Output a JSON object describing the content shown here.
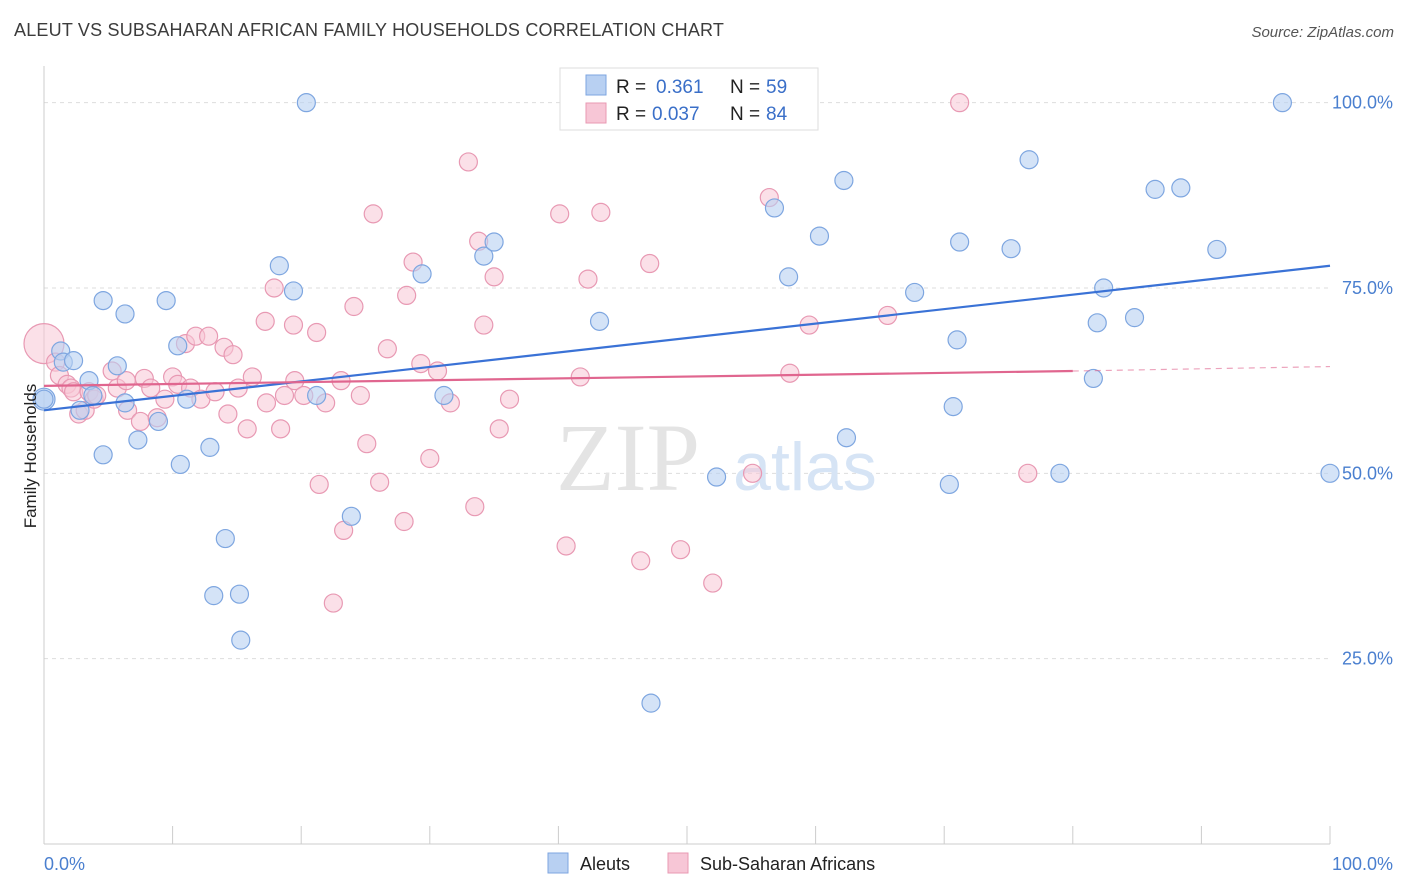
{
  "header": {
    "title": "ALEUT VS SUBSAHARAN AFRICAN FAMILY HOUSEHOLDS CORRELATION CHART",
    "source": "Source: ZipAtlas.com"
  },
  "watermark": {
    "zip": "ZIP",
    "atlas": "atlas"
  },
  "legend": {
    "rows": [
      {
        "r_label": "R =",
        "r_value": "0.361",
        "n_label": "N =",
        "n_value": "59"
      },
      {
        "r_label": "R =",
        "r_value": "0.037",
        "n_label": "N =",
        "n_value": "84"
      }
    ]
  },
  "bottom_legend": [
    "Aleuts",
    "Sub-Saharan Africans"
  ],
  "chart_data": {
    "type": "scatter",
    "title": "ALEUT VS SUBSAHARAN AFRICAN FAMILY HOUSEHOLDS CORRELATION CHART",
    "xlabel": "",
    "ylabel": "Family Households",
    "xlim": [
      0,
      100
    ],
    "ylim": [
      0,
      104
    ],
    "x_tick_labels": [
      "0.0%",
      "100.0%"
    ],
    "y_ticks": [
      25,
      50,
      75,
      100
    ],
    "y_tick_labels": [
      "25.0%",
      "50.0%",
      "75.0%",
      "100.0%"
    ],
    "grid": true,
    "legend_position": "top-center",
    "colors": {
      "aleuts_fill": "#b8d0f2",
      "aleuts_stroke": "#7ea6e0",
      "aleuts_line": "#3a72d6",
      "africans_fill": "#f7c6d6",
      "africans_stroke": "#e899b3",
      "africans_line": "#e0668f",
      "axis_text": "#4a7fcf",
      "grid": "#dddddd"
    },
    "series": [
      {
        "name": "Aleuts",
        "r": 0.361,
        "n": 59,
        "trend": {
          "x": [
            0,
            100
          ],
          "y": [
            58.5,
            78.0
          ]
        },
        "points": [
          [
            0.0,
            60.0
          ],
          [
            1.3,
            66.5
          ],
          [
            1.5,
            65.0
          ],
          [
            2.3,
            65.2
          ],
          [
            2.8,
            58.5
          ],
          [
            3.5,
            62.5
          ],
          [
            3.8,
            60.5
          ],
          [
            4.6,
            52.5
          ],
          [
            4.6,
            73.3
          ],
          [
            5.7,
            64.5
          ],
          [
            6.3,
            71.5
          ],
          [
            6.3,
            59.5
          ],
          [
            7.3,
            54.5
          ],
          [
            8.9,
            57.0
          ],
          [
            9.5,
            73.3
          ],
          [
            10.4,
            67.2
          ],
          [
            10.6,
            51.2
          ],
          [
            11.1,
            60.0
          ],
          [
            12.9,
            53.5
          ],
          [
            13.2,
            33.5
          ],
          [
            14.1,
            41.2
          ],
          [
            15.2,
            33.7
          ],
          [
            15.3,
            27.5
          ],
          [
            18.3,
            78.0
          ],
          [
            19.4,
            74.6
          ],
          [
            20.4,
            100.0
          ],
          [
            21.2,
            60.5
          ],
          [
            23.9,
            44.2
          ],
          [
            29.4,
            76.9
          ],
          [
            31.1,
            60.5
          ],
          [
            34.2,
            79.3
          ],
          [
            35.0,
            81.2
          ],
          [
            43.2,
            70.5
          ],
          [
            47.2,
            19.0
          ],
          [
            52.3,
            49.5
          ],
          [
            55.9,
            100.0
          ],
          [
            56.8,
            85.8
          ],
          [
            57.9,
            76.5
          ],
          [
            60.3,
            82.0
          ],
          [
            62.2,
            89.5
          ],
          [
            62.4,
            54.8
          ],
          [
            67.7,
            74.4
          ],
          [
            70.4,
            48.5
          ],
          [
            70.7,
            59.0
          ],
          [
            71.0,
            68.0
          ],
          [
            71.2,
            81.2
          ],
          [
            75.2,
            80.3
          ],
          [
            76.6,
            92.3
          ],
          [
            79.0,
            50.0
          ],
          [
            81.6,
            62.8
          ],
          [
            81.9,
            70.3
          ],
          [
            82.4,
            75.0
          ],
          [
            84.8,
            71.0
          ],
          [
            86.4,
            88.3
          ],
          [
            88.4,
            88.5
          ],
          [
            91.2,
            80.2
          ],
          [
            96.3,
            100.0
          ],
          [
            100.0,
            50.0
          ],
          [
            0.0,
            60.0
          ]
        ]
      },
      {
        "name": "Sub-Saharan Africans",
        "r": 0.037,
        "n": 84,
        "trend": {
          "x": [
            0,
            80
          ],
          "y": [
            61.8,
            63.8
          ]
        },
        "trend_dashed": {
          "x": [
            80,
            100
          ],
          "y": [
            63.8,
            64.4
          ]
        },
        "points": [
          [
            0.0,
            67.5
          ],
          [
            0.9,
            65.0
          ],
          [
            1.2,
            63.2
          ],
          [
            1.8,
            62.0
          ],
          [
            2.1,
            61.5
          ],
          [
            2.3,
            61.0
          ],
          [
            2.7,
            58.0
          ],
          [
            3.2,
            58.5
          ],
          [
            3.5,
            61.0
          ],
          [
            3.9,
            60.0
          ],
          [
            4.1,
            60.5
          ],
          [
            5.3,
            63.8
          ],
          [
            5.7,
            61.5
          ],
          [
            6.4,
            62.5
          ],
          [
            6.5,
            58.5
          ],
          [
            7.5,
            57.0
          ],
          [
            7.8,
            62.8
          ],
          [
            8.3,
            61.5
          ],
          [
            8.8,
            57.5
          ],
          [
            9.4,
            60.0
          ],
          [
            10.0,
            63.0
          ],
          [
            10.4,
            62.0
          ],
          [
            11.0,
            67.5
          ],
          [
            11.4,
            61.5
          ],
          [
            11.8,
            68.5
          ],
          [
            12.2,
            60.0
          ],
          [
            12.8,
            68.5
          ],
          [
            13.3,
            61.0
          ],
          [
            14.0,
            67.0
          ],
          [
            14.3,
            58.0
          ],
          [
            14.7,
            66.0
          ],
          [
            15.1,
            61.5
          ],
          [
            15.8,
            56.0
          ],
          [
            16.2,
            63.0
          ],
          [
            17.2,
            70.5
          ],
          [
            17.3,
            59.5
          ],
          [
            17.9,
            75.0
          ],
          [
            18.4,
            56.0
          ],
          [
            18.7,
            60.5
          ],
          [
            19.4,
            70.0
          ],
          [
            19.5,
            62.5
          ],
          [
            20.2,
            60.5
          ],
          [
            21.2,
            69.0
          ],
          [
            21.4,
            48.5
          ],
          [
            21.9,
            59.5
          ],
          [
            22.5,
            32.5
          ],
          [
            23.1,
            62.5
          ],
          [
            23.3,
            42.3
          ],
          [
            24.1,
            72.5
          ],
          [
            24.6,
            60.5
          ],
          [
            25.1,
            54.0
          ],
          [
            25.6,
            85.0
          ],
          [
            26.1,
            48.8
          ],
          [
            26.7,
            66.8
          ],
          [
            28.0,
            43.5
          ],
          [
            28.2,
            74.0
          ],
          [
            28.7,
            78.5
          ],
          [
            29.3,
            64.8
          ],
          [
            30.0,
            52.0
          ],
          [
            30.6,
            63.8
          ],
          [
            31.6,
            59.5
          ],
          [
            33.0,
            92.0
          ],
          [
            33.5,
            45.5
          ],
          [
            33.8,
            81.3
          ],
          [
            34.2,
            70.0
          ],
          [
            35.0,
            76.5
          ],
          [
            35.4,
            56.0
          ],
          [
            36.2,
            60.0
          ],
          [
            40.1,
            85.0
          ],
          [
            40.6,
            40.2
          ],
          [
            41.7,
            63.0
          ],
          [
            42.3,
            76.2
          ],
          [
            43.3,
            85.2
          ],
          [
            46.4,
            38.2
          ],
          [
            47.1,
            78.3
          ],
          [
            49.5,
            39.7
          ],
          [
            52.0,
            35.2
          ],
          [
            55.1,
            50.0
          ],
          [
            56.4,
            87.2
          ],
          [
            58.0,
            63.5
          ],
          [
            59.5,
            70.0
          ],
          [
            65.6,
            71.3
          ],
          [
            71.2,
            100.0
          ],
          [
            76.5,
            50.0
          ]
        ]
      }
    ],
    "extra_points_note": ""
  }
}
